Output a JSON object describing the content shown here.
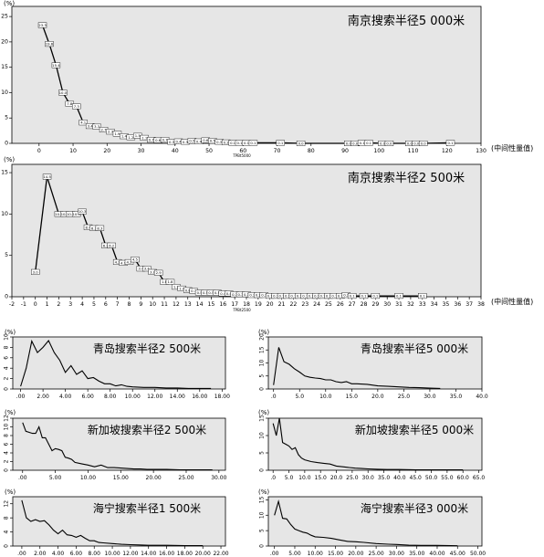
{
  "chart_data": [
    {
      "type": "line",
      "title": "南京搜索半径5 000米",
      "ylabel": "(%)",
      "xlabel": "(中间性量值)",
      "footnote": "TPBt5000",
      "xlim": [
        -8,
        130
      ],
      "ylim": [
        0,
        27
      ],
      "xticks": [
        0,
        10,
        20,
        30,
        40,
        50,
        60,
        70,
        80,
        90,
        100,
        110,
        120,
        130
      ],
      "yticks": [
        0,
        5,
        10,
        15,
        20,
        25
      ],
      "x": [
        1,
        3,
        5,
        7,
        9,
        11,
        13,
        15,
        17,
        19,
        21,
        23,
        25,
        27,
        29,
        31,
        33,
        35,
        37,
        39,
        41,
        43,
        45,
        47,
        49,
        51,
        53,
        55,
        57,
        59,
        61,
        63,
        71,
        77,
        91,
        93,
        95,
        97,
        101,
        103,
        109,
        111,
        113,
        121
      ],
      "y": [
        23.3,
        19.6,
        15.4,
        10.0,
        7.8,
        7.3,
        4.1,
        3.4,
        3.3,
        2.7,
        2.3,
        1.9,
        1.4,
        1.2,
        1.5,
        1.1,
        0.7,
        0.6,
        0.7,
        0.3,
        0.4,
        0.3,
        0.5,
        0.4,
        0.6,
        0.5,
        0.3,
        0.2,
        0.1,
        0.1,
        0.1,
        0.1,
        0.1,
        0.0,
        0.0,
        0.0,
        0.1,
        0.1,
        0.0,
        0.0,
        0.0,
        0.0,
        0.0,
        0.1
      ],
      "data_labels": [
        "23.3",
        "19.6",
        "15.4",
        "10.0",
        "7.8",
        "7.3",
        "4.1",
        "3.4",
        "3.3",
        "2.7",
        "2.3",
        "1.9",
        "1.4",
        "1.2",
        "1.5",
        "1.1",
        "0.7",
        "0.6",
        "0.7",
        "0.3",
        "0.4",
        "0.3",
        "0.5",
        "0.4",
        "0.6",
        "0.5",
        "0.3",
        "0.2",
        "0.1",
        "0.1",
        "0.1",
        "0.1",
        "0.1",
        "0.0",
        "0.0",
        "0.0",
        "0.1",
        "0.1",
        "0.0",
        "0.0",
        "0.0",
        "0.0",
        "0.0",
        "0.1"
      ],
      "grid": false
    },
    {
      "type": "line",
      "title": "南京搜索半径2 500米",
      "ylabel": "(%)",
      "xlabel": "(中间性量值)",
      "footnote": "TPBt2500",
      "xlim": [
        -2,
        38
      ],
      "ylim": [
        0,
        16
      ],
      "xticks": [
        -2,
        -1,
        0,
        1,
        2,
        3,
        4,
        5,
        6,
        7,
        8,
        9,
        10,
        11,
        12,
        13,
        14,
        15,
        16,
        17,
        18,
        19,
        20,
        21,
        22,
        23,
        24,
        25,
        26,
        27,
        28,
        29,
        30,
        31,
        32,
        33,
        34,
        35,
        36,
        37,
        38
      ],
      "yticks": [
        0,
        5,
        10,
        15
      ],
      "x": [
        0,
        1,
        2,
        2.5,
        3,
        3.5,
        4,
        4.5,
        5,
        5.5,
        6,
        6.5,
        7,
        7.5,
        8,
        8.5,
        9,
        9.5,
        10,
        10.5,
        11,
        11.5,
        12,
        12.5,
        13,
        13.5,
        14,
        14.5,
        15,
        15.5,
        16,
        16.5,
        17,
        17.5,
        18,
        18.5,
        19,
        19.5,
        20,
        20.5,
        21,
        21.5,
        22,
        22.5,
        23,
        23.5,
        24,
        24.5,
        25,
        25.5,
        26,
        26.5,
        27,
        28,
        29,
        31,
        33
      ],
      "y": [
        3.0,
        14.5,
        10.0,
        10.0,
        10.0,
        10.0,
        10.3,
        8.4,
        8.3,
        8.3,
        6.2,
        6.2,
        4.2,
        4.1,
        4.2,
        4.5,
        3.4,
        3.4,
        3.0,
        2.9,
        1.8,
        1.8,
        1.2,
        1.0,
        0.8,
        0.7,
        0.5,
        0.5,
        0.5,
        0.5,
        0.4,
        0.4,
        0.3,
        0.3,
        0.3,
        0.2,
        0.2,
        0.2,
        0.1,
        0.1,
        0.1,
        0.1,
        0.1,
        0.1,
        0.1,
        0.1,
        0.1,
        0.1,
        0.1,
        0.1,
        0.1,
        0.2,
        0.1,
        0.1,
        0.1,
        0.1,
        0.1
      ],
      "data_labels": [
        "3.0",
        "14.5",
        "10.0",
        "10.0",
        "10.0",
        "10.0",
        "10.3",
        "8.4",
        "8.3",
        "8.3",
        "6.2",
        "6.2",
        "4.2",
        "4.1",
        "4.2",
        "4.5",
        "3.4",
        "3.4",
        "3.0",
        "2.9",
        "1.8",
        "1.8",
        "1.2",
        "1.0",
        "0.8",
        "0.7",
        "0.5",
        "0.5",
        "0.5",
        "0.5",
        "0.4",
        "0.4",
        "0.3",
        "0.3",
        "0.3",
        "0.2",
        "0.2",
        "0.2",
        "0.1",
        "0.1",
        "0.1",
        "0.1",
        "0.1",
        "0.1",
        "0.1",
        "0.1",
        "0.1",
        "0.1",
        "0.1",
        "0.1",
        "0.1",
        "0.2",
        "0.1",
        "0.1",
        "0.1",
        "0.1",
        "0.1"
      ],
      "grid": false
    },
    {
      "type": "line",
      "title": "青岛搜索半径2 500米",
      "ylabel": "(%)",
      "xlim": [
        -0.7,
        18.3
      ],
      "ylim": [
        0,
        10
      ],
      "xticks": [
        0,
        2,
        4,
        6,
        8,
        10,
        12,
        14,
        16,
        18
      ],
      "xtick_labels": [
        ".00",
        "2.00",
        "4.00",
        "6.00",
        "8.00",
        "10.00",
        "12.00",
        "14.00",
        "16.00",
        "18.00"
      ],
      "yticks": [
        0,
        2,
        4,
        6,
        8,
        10
      ],
      "x": [
        0.0,
        0.5,
        1.0,
        1.5,
        2.0,
        2.5,
        3.0,
        3.5,
        4.0,
        4.5,
        5.0,
        5.5,
        6.0,
        6.5,
        7.0,
        7.5,
        8.0,
        8.5,
        9.0,
        9.5,
        10.0,
        11.0,
        12.0,
        13.0,
        14.0,
        15.0,
        16.0,
        17.0
      ],
      "y": [
        0.5,
        4.0,
        9.2,
        7.0,
        8.0,
        9.3,
        7.0,
        5.5,
        3.2,
        4.5,
        2.8,
        3.5,
        2.0,
        2.2,
        1.5,
        1.0,
        1.0,
        0.6,
        0.8,
        0.5,
        0.4,
        0.3,
        0.3,
        0.2,
        0.2,
        0.1,
        0.1,
        0.1
      ],
      "grid": false
    },
    {
      "type": "line",
      "title": "青岛搜索半径5 000米",
      "ylabel": "(%)",
      "xlim": [
        -1,
        40
      ],
      "ylim": [
        0,
        20
      ],
      "xticks": [
        0,
        5,
        10,
        15,
        20,
        25,
        30,
        35,
        40
      ],
      "xtick_labels": [
        ".0",
        "5.0",
        "10.0",
        "15.0",
        "20.0",
        "25.0",
        "30.0",
        "35.0",
        "40.0"
      ],
      "yticks": [
        0,
        5,
        10,
        15,
        20
      ],
      "x": [
        0,
        1,
        2,
        3,
        4,
        5,
        6,
        7,
        8,
        9,
        10,
        11,
        12,
        13,
        14,
        15,
        16,
        18,
        20,
        22,
        24,
        26,
        28,
        30,
        32
      ],
      "y": [
        1.5,
        16.0,
        10.5,
        9.5,
        7.8,
        6.5,
        5.0,
        4.5,
        4.2,
        4.0,
        3.5,
        3.5,
        2.8,
        2.5,
        2.8,
        2.0,
        2.0,
        1.8,
        1.2,
        1.0,
        0.8,
        0.6,
        0.5,
        0.3,
        0.2
      ],
      "grid": false
    },
    {
      "type": "line",
      "title": "新加坡搜索半径2 500米",
      "ylabel": "(%)",
      "xlim": [
        -1.5,
        31
      ],
      "ylim": [
        0,
        12
      ],
      "xticks": [
        0,
        5,
        10,
        15,
        20,
        25,
        30
      ],
      "xtick_labels": [
        ".00",
        "5.00",
        "10.00",
        "15.00",
        "20.00",
        "25.00",
        "30.00"
      ],
      "yticks": [
        0,
        2,
        4,
        6,
        8,
        10,
        12
      ],
      "x": [
        0,
        0.5,
        1.5,
        2,
        2.5,
        3,
        3.5,
        4,
        4.5,
        5,
        5.5,
        6,
        6.5,
        7,
        7.5,
        8,
        9,
        10,
        11,
        12,
        13,
        14,
        15,
        16,
        17,
        18,
        19,
        20,
        22,
        24,
        26,
        28,
        29
      ],
      "y": [
        11.0,
        9.0,
        8.5,
        8.5,
        10.0,
        7.5,
        7.5,
        6.0,
        4.5,
        5.0,
        4.8,
        4.5,
        3.0,
        2.8,
        2.5,
        1.8,
        1.5,
        1.2,
        0.8,
        1.2,
        0.6,
        0.6,
        0.5,
        0.4,
        0.3,
        0.3,
        0.2,
        0.2,
        0.2,
        0.1,
        0.1,
        0.1,
        0.1
      ],
      "grid": false
    },
    {
      "type": "line",
      "title": "新加坡搜索半径5 000米",
      "ylabel": "(%)",
      "xlim": [
        -1.5,
        66
      ],
      "ylim": [
        0,
        15
      ],
      "xticks": [
        0,
        5,
        10,
        15,
        20,
        25,
        30,
        35,
        40,
        45,
        50,
        55,
        60,
        65
      ],
      "xtick_labels": [
        ".0",
        "5.0",
        "10.0",
        "15.0",
        "20.0",
        "25.0",
        "30.0",
        "35.0",
        "40.0",
        "45.0",
        "50.0",
        "55.0",
        "60.0",
        "65.0"
      ],
      "yticks": [
        0,
        5,
        10,
        15
      ],
      "x": [
        0,
        1,
        2,
        3,
        4,
        5,
        6,
        7,
        8,
        9,
        10,
        12,
        14,
        16,
        18,
        20,
        22,
        24,
        26,
        28,
        30,
        33,
        36,
        40,
        45,
        50,
        55,
        60
      ],
      "y": [
        13.5,
        10.0,
        15.0,
        8.0,
        7.5,
        7.0,
        6.0,
        6.5,
        4.5,
        3.5,
        3.0,
        2.5,
        2.2,
        2.0,
        1.8,
        1.2,
        1.0,
        0.8,
        0.6,
        0.5,
        0.4,
        0.3,
        0.2,
        0.2,
        0.1,
        0.1,
        0.1,
        0.1
      ],
      "grid": false
    },
    {
      "type": "line",
      "title": "海宁搜索半径1 500米",
      "ylabel": "(%)",
      "xlim": [
        -1,
        22.5
      ],
      "ylim": [
        0,
        14
      ],
      "xticks": [
        0,
        2,
        4,
        6,
        8,
        10,
        12,
        14,
        16,
        18,
        20,
        22
      ],
      "xtick_labels": [
        ".00",
        "2.00",
        "4.00",
        "6.00",
        "8.00",
        "10.00",
        "12.00",
        "14.00",
        "16.00",
        "18.00",
        "20.00",
        "22.00"
      ],
      "yticks": [
        0,
        4,
        8,
        12
      ],
      "x": [
        0,
        0.5,
        1,
        1.5,
        2,
        2.5,
        3,
        3.5,
        4,
        4.5,
        5,
        5.5,
        6,
        6.5,
        7,
        7.5,
        8,
        8.5,
        9,
        10,
        11,
        12,
        13,
        14,
        16,
        18,
        20
      ],
      "y": [
        13.0,
        8.0,
        7.0,
        7.5,
        7.0,
        7.2,
        6.0,
        4.5,
        3.5,
        4.5,
        3.2,
        3.0,
        2.5,
        3.0,
        2.2,
        1.5,
        1.5,
        1.0,
        0.9,
        0.7,
        0.5,
        0.4,
        0.3,
        0.2,
        0.2,
        0.1,
        0.1
      ],
      "grid": false
    },
    {
      "type": "line",
      "title": "海宁搜索半径3 000米",
      "ylabel": "(%)",
      "xlim": [
        -1.5,
        51
      ],
      "ylim": [
        0,
        16
      ],
      "xticks": [
        0,
        5,
        10,
        15,
        20,
        25,
        30,
        35,
        40,
        45,
        50
      ],
      "xtick_labels": [
        ".00",
        "5.00",
        "10.00",
        "15.00",
        "20.00",
        "25.00",
        "30.00",
        "35.00",
        "40.00",
        "45.00",
        "50.00"
      ],
      "yticks": [
        0,
        5,
        10,
        15
      ],
      "x": [
        0,
        1,
        2,
        3,
        4,
        5,
        6,
        7,
        8,
        9,
        10,
        12,
        14,
        16,
        18,
        20,
        22,
        25,
        28,
        30,
        33,
        36,
        40,
        45
      ],
      "y": [
        10.0,
        14.5,
        9.0,
        8.8,
        7.0,
        5.5,
        5.0,
        4.5,
        4.2,
        3.5,
        3.0,
        2.8,
        2.5,
        2.0,
        1.5,
        1.4,
        1.2,
        0.8,
        0.6,
        0.5,
        0.3,
        0.2,
        0.2,
        0.1
      ],
      "grid": false
    }
  ]
}
